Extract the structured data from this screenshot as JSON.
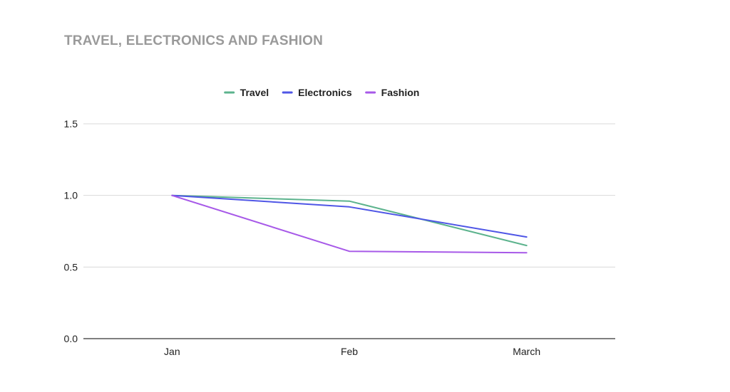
{
  "chart_data": {
    "type": "line",
    "title": "TRAVEL, ELECTRONICS AND FASHION",
    "categories": [
      "Jan",
      "Feb",
      "March"
    ],
    "series": [
      {
        "name": "Travel",
        "color": "#5cb38d",
        "values": [
          1.0,
          0.96,
          0.65
        ]
      },
      {
        "name": "Electronics",
        "color": "#4f56e6",
        "values": [
          1.0,
          0.92,
          0.71
        ]
      },
      {
        "name": "Fashion",
        "color": "#a759e8",
        "values": [
          1.0,
          0.61,
          0.6
        ]
      }
    ],
    "yticks": [
      "0.0",
      "0.5",
      "1.0",
      "1.5"
    ],
    "ylim": [
      0,
      1.5
    ],
    "xlabel": "",
    "ylabel": "",
    "grid": true,
    "legend": "top"
  }
}
